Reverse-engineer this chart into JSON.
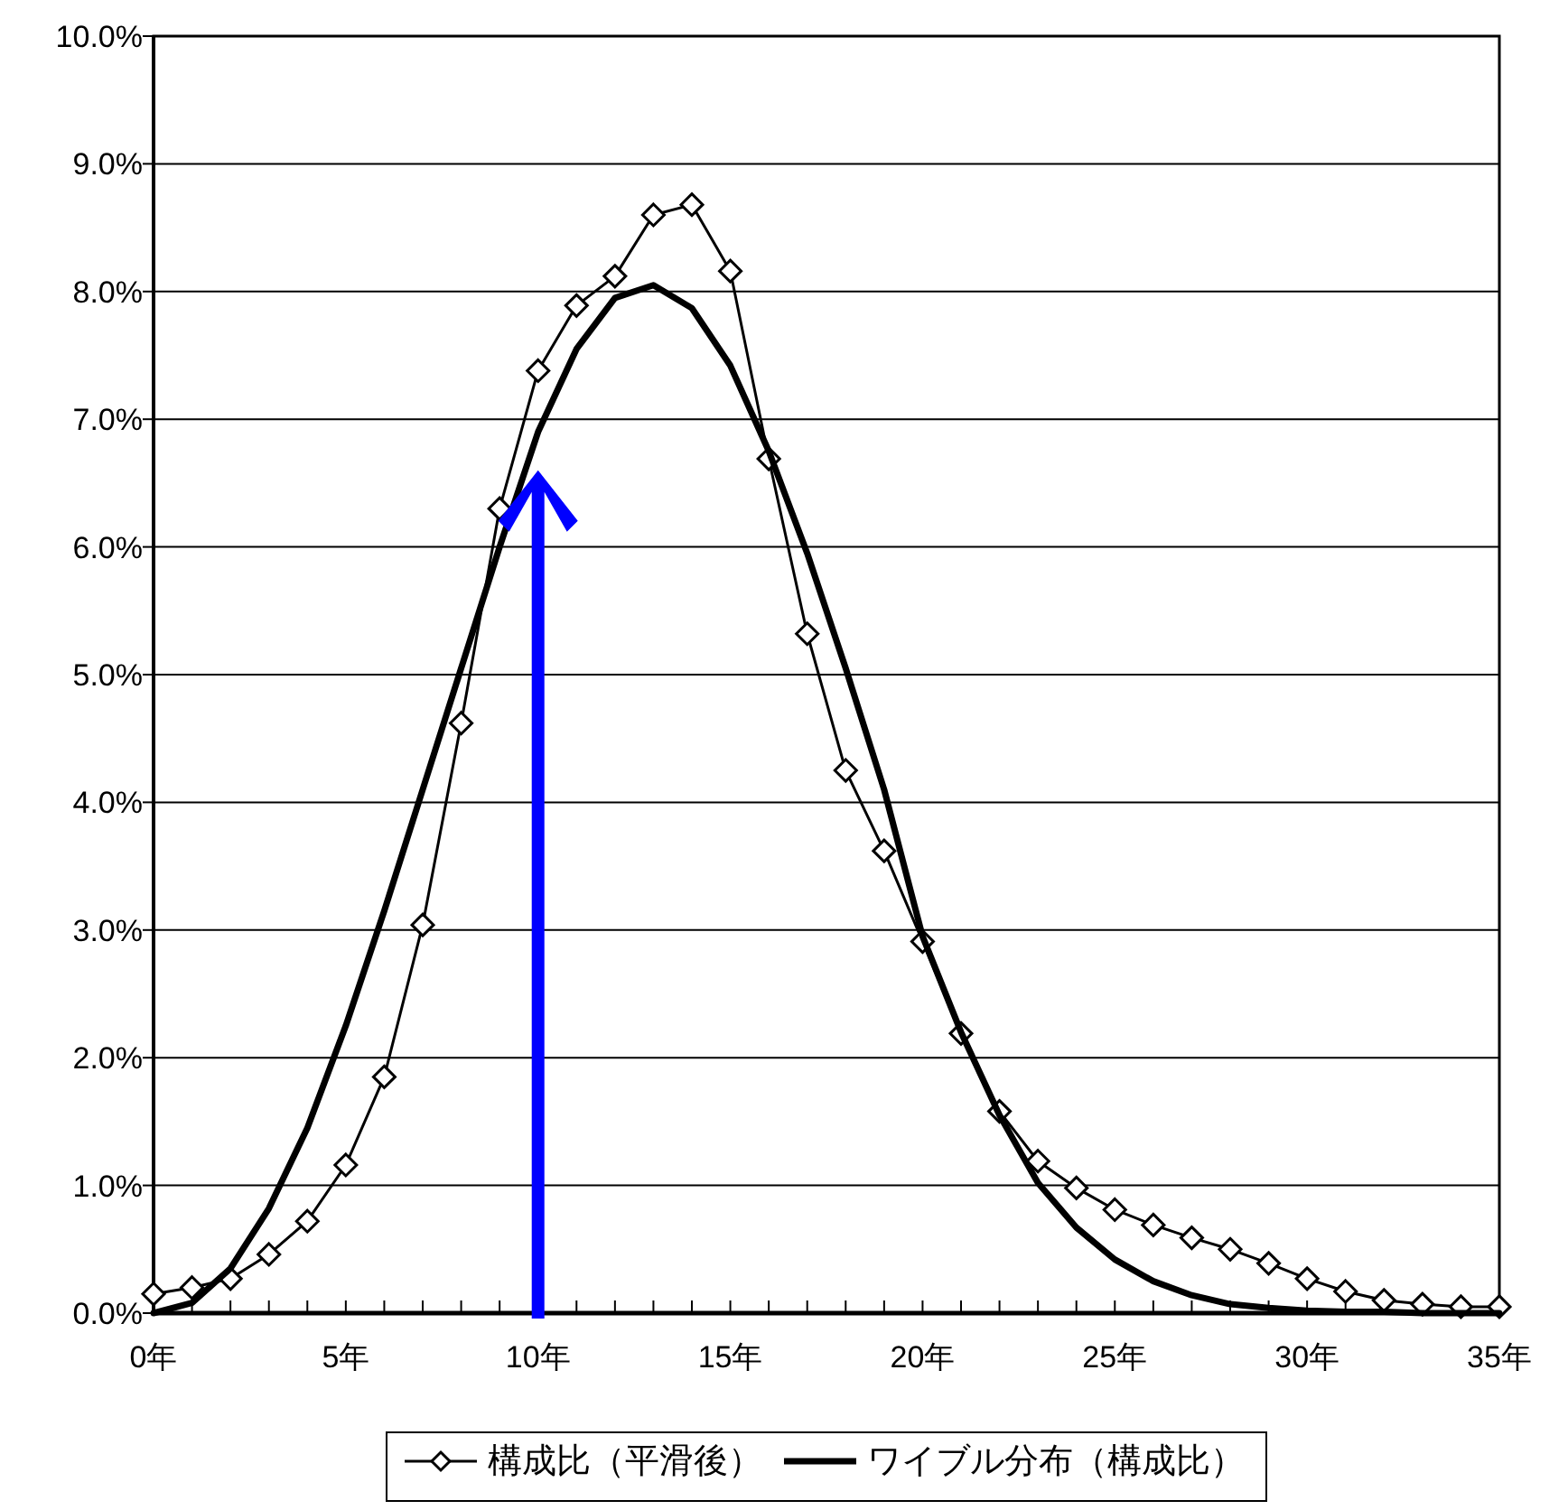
{
  "chart_data": {
    "type": "line",
    "x": [
      0,
      1,
      2,
      3,
      4,
      5,
      6,
      7,
      8,
      9,
      10,
      11,
      12,
      13,
      14,
      15,
      16,
      17,
      18,
      19,
      20,
      21,
      22,
      23,
      24,
      25,
      26,
      27,
      28,
      29,
      30,
      31,
      32,
      33,
      34,
      35
    ],
    "series": [
      {
        "name": "構成比（平滑後）",
        "color": "#000000",
        "marker": "diamond",
        "values": [
          0.15,
          0.2,
          0.27,
          0.46,
          0.72,
          1.16,
          1.85,
          3.04,
          4.62,
          6.3,
          7.38,
          7.89,
          8.12,
          8.6,
          8.68,
          8.16,
          6.69,
          5.32,
          4.25,
          3.62,
          2.91,
          2.19,
          1.58,
          1.19,
          0.98,
          0.81,
          0.69,
          0.59,
          0.5,
          0.39,
          0.27,
          0.17,
          0.1,
          0.07,
          0.05,
          0.05
        ]
      },
      {
        "name": "ワイブル分布（構成比）",
        "color": "#000000",
        "marker": "none",
        "values": [
          0,
          0.08,
          0.35,
          0.82,
          1.45,
          2.25,
          3.15,
          4.1,
          5.05,
          6.0,
          6.9,
          7.55,
          7.95,
          8.05,
          7.87,
          7.42,
          6.75,
          5.95,
          5.05,
          4.1,
          2.95,
          2.2,
          1.55,
          1.02,
          0.67,
          0.42,
          0.25,
          0.14,
          0.07,
          0.04,
          0.02,
          0.01,
          0.01,
          0,
          0,
          0
        ]
      }
    ],
    "xlim": [
      0,
      35
    ],
    "xticks": [
      {
        "value": 0,
        "label": "0年"
      },
      {
        "value": 1,
        "label": null
      },
      {
        "value": 2,
        "label": null
      },
      {
        "value": 3,
        "label": null
      },
      {
        "value": 4,
        "label": null
      },
      {
        "value": 5,
        "label": "5年"
      },
      {
        "value": 6,
        "label": null
      },
      {
        "value": 7,
        "label": null
      },
      {
        "value": 8,
        "label": null
      },
      {
        "value": 9,
        "label": null
      },
      {
        "value": 10,
        "label": "10年"
      },
      {
        "value": 11,
        "label": null
      },
      {
        "value": 12,
        "label": null
      },
      {
        "value": 13,
        "label": null
      },
      {
        "value": 14,
        "label": null
      },
      {
        "value": 15,
        "label": "15年"
      },
      {
        "value": 16,
        "label": null
      },
      {
        "value": 17,
        "label": null
      },
      {
        "value": 18,
        "label": null
      },
      {
        "value": 19,
        "label": null
      },
      {
        "value": 20,
        "label": "20年"
      },
      {
        "value": 21,
        "label": null
      },
      {
        "value": 22,
        "label": null
      },
      {
        "value": 23,
        "label": null
      },
      {
        "value": 24,
        "label": null
      },
      {
        "value": 25,
        "label": "25年"
      },
      {
        "value": 26,
        "label": null
      },
      {
        "value": 27,
        "label": null
      },
      {
        "value": 28,
        "label": null
      },
      {
        "value": 29,
        "label": null
      },
      {
        "value": 30,
        "label": "30年"
      },
      {
        "value": 31,
        "label": null
      },
      {
        "value": 32,
        "label": null
      },
      {
        "value": 33,
        "label": null
      },
      {
        "value": 34,
        "label": null
      },
      {
        "value": 35,
        "label": "35年"
      }
    ],
    "ylim": [
      0,
      10
    ],
    "yticks": [
      {
        "value": 0,
        "label": "0.0%"
      },
      {
        "value": 1,
        "label": "1.0%"
      },
      {
        "value": 2,
        "label": "2.0%"
      },
      {
        "value": 3,
        "label": "3.0%"
      },
      {
        "value": 4,
        "label": "4.0%"
      },
      {
        "value": 5,
        "label": "5.0%"
      },
      {
        "value": 6,
        "label": "6.0%"
      },
      {
        "value": 7,
        "label": "7.0%"
      },
      {
        "value": 8,
        "label": "8.0%"
      },
      {
        "value": 9,
        "label": "9.0%"
      },
      {
        "value": 10,
        "label": "10.0%"
      }
    ],
    "grid": "y",
    "legend": "bottom"
  }
}
